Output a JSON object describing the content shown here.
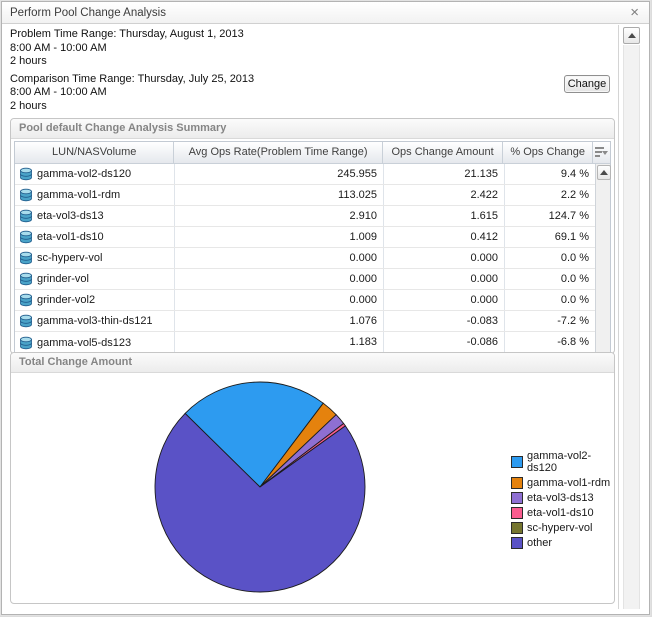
{
  "window": {
    "title": "Perform Pool Change Analysis"
  },
  "icons": {
    "close": "×"
  },
  "time_ranges": {
    "problem": {
      "heading": "Problem Time Range: Thursday, August 1, 2013",
      "time": "8:00 AM - 10:00 AM",
      "duration": "2 hours"
    },
    "comparison": {
      "heading": "Comparison Time Range: Thursday, July 25, 2013",
      "time": "8:00 AM - 10:00 AM",
      "duration": "2 hours"
    },
    "change_button_label": "Change"
  },
  "summary_panel": {
    "title": "Pool default Change Analysis Summary",
    "columns": [
      "LUN/NASVolume",
      "Avg Ops Rate(Problem Time Range)",
      "Ops Change Amount",
      "% Ops Change"
    ],
    "rows": [
      {
        "name": "gamma-vol2-ds120",
        "avg_ops_rate": "245.955",
        "ops_change_amount": "21.135",
        "pct_ops_change": "9.4 %"
      },
      {
        "name": "gamma-vol1-rdm",
        "avg_ops_rate": "113.025",
        "ops_change_amount": "2.422",
        "pct_ops_change": "2.2 %"
      },
      {
        "name": "eta-vol3-ds13",
        "avg_ops_rate": "2.910",
        "ops_change_amount": "1.615",
        "pct_ops_change": "124.7 %"
      },
      {
        "name": "eta-vol1-ds10",
        "avg_ops_rate": "1.009",
        "ops_change_amount": "0.412",
        "pct_ops_change": "69.1 %"
      },
      {
        "name": "sc-hyperv-vol",
        "avg_ops_rate": "0.000",
        "ops_change_amount": "0.000",
        "pct_ops_change": "0.0 %"
      },
      {
        "name": "grinder-vol",
        "avg_ops_rate": "0.000",
        "ops_change_amount": "0.000",
        "pct_ops_change": "0.0 %"
      },
      {
        "name": "grinder-vol2",
        "avg_ops_rate": "0.000",
        "ops_change_amount": "0.000",
        "pct_ops_change": "0.0 %"
      },
      {
        "name": "gamma-vol3-thin-ds121",
        "avg_ops_rate": "1.076",
        "ops_change_amount": "-0.083",
        "pct_ops_change": "-7.2 %"
      },
      {
        "name": "gamma-vol5-ds123",
        "avg_ops_rate": "1.183",
        "ops_change_amount": "-0.086",
        "pct_ops_change": "-6.8 %"
      }
    ]
  },
  "chart_panel": {
    "title": "Total Change Amount"
  },
  "chart_data": {
    "type": "pie",
    "title": "Total Change Amount",
    "labels": [
      "gamma-vol2-ds120",
      "gamma-vol1-rdm",
      "eta-vol3-ds13",
      "eta-vol1-ds10",
      "sc-hyperv-vol",
      "other"
    ],
    "values": [
      21.135,
      2.422,
      1.615,
      0.412,
      0.0,
      66.6
    ],
    "colors": [
      "#2D9BF0",
      "#E5820D",
      "#8E6FD2",
      "#FA5C8F",
      "#75752F",
      "#5A52C6"
    ],
    "start_angle_deg": 135.5,
    "direction": "clockwise",
    "legend_position": "right"
  }
}
